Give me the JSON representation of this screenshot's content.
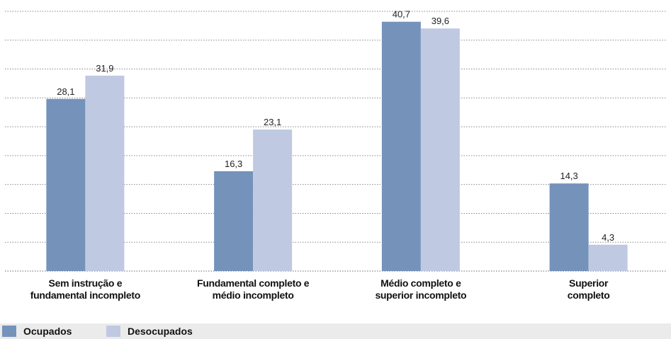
{
  "chart_data": {
    "type": "bar",
    "categories": [
      "Sem instrução e\nfundamental incompleto",
      "Fundamental completo e\nmédio incompleto",
      "Médio completo e\nsuperior incompleto",
      "Superior\ncompleto"
    ],
    "series": [
      {
        "name": "Ocupados",
        "color": "#7592bb",
        "values": [
          28.1,
          16.3,
          40.7,
          14.3
        ],
        "value_labels": [
          "28,1",
          "16,3",
          "40,7",
          "14,3"
        ]
      },
      {
        "name": "Desocupados",
        "color": "#bfc9e1",
        "values": [
          31.9,
          23.1,
          39.6,
          4.3
        ],
        "value_labels": [
          "31,9",
          "23,1",
          "39,6",
          "4,3"
        ]
      }
    ],
    "ylim": [
      0,
      42.4
    ],
    "grid": true
  }
}
